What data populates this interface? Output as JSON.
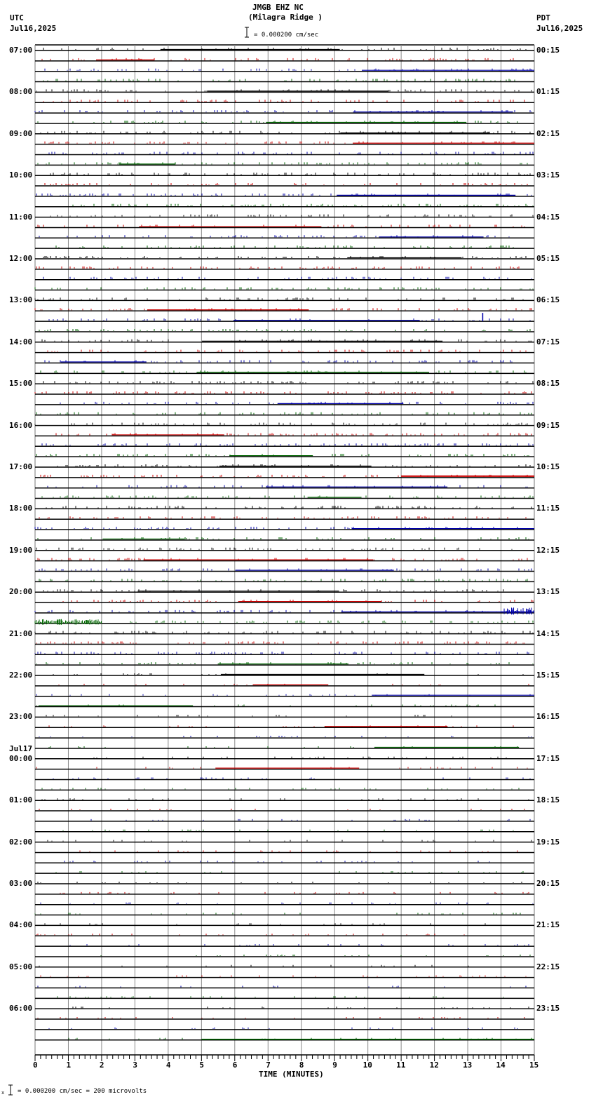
{
  "header": {
    "station": "JMGB EHZ NC",
    "location": "(Milagra Ridge )",
    "scale_label": "= 0.000200 cm/sec",
    "left_tz": "UTC",
    "left_date": "Jul16,2025",
    "right_tz": "PDT",
    "right_date": "Jul16,2025"
  },
  "footer": {
    "scale_note": "= 0.000200 cm/sec =     200 microvolts",
    "prefix": "x"
  },
  "chart_data": {
    "type": "line",
    "title": "JMGB EHZ NC (Milagra Ridge ) helicorder",
    "xlabel": "TIME (MINUTES)",
    "ylabel": "",
    "x_ticks": [
      0,
      1,
      2,
      3,
      4,
      5,
      6,
      7,
      8,
      9,
      10,
      11,
      12,
      13,
      14,
      15
    ],
    "xlim": [
      0,
      15
    ],
    "rows_per_hour": 4,
    "row_minutes": 15,
    "total_rows": 96,
    "trace_colors": [
      "#000000",
      "#cc0000",
      "#0000aa",
      "#006600"
    ],
    "grid": true,
    "left_labels": [
      "07:00",
      "08:00",
      "09:00",
      "10:00",
      "11:00",
      "12:00",
      "13:00",
      "14:00",
      "15:00",
      "16:00",
      "17:00",
      "18:00",
      "19:00",
      "20:00",
      "21:00",
      "22:00",
      "23:00",
      "00:00",
      "01:00",
      "02:00",
      "03:00",
      "04:00",
      "05:00",
      "06:00"
    ],
    "date_change_label": "Jul17",
    "right_labels": [
      "00:15",
      "01:15",
      "02:15",
      "03:15",
      "04:15",
      "05:15",
      "06:15",
      "07:15",
      "08:15",
      "09:15",
      "10:15",
      "11:15",
      "12:15",
      "13:15",
      "14:15",
      "15:15",
      "16:15",
      "17:15",
      "18:15",
      "19:15",
      "20:15",
      "21:15",
      "22:15",
      "23:15"
    ],
    "scale": "0.000200 cm/sec = 200 microvolts",
    "notable_events": [
      {
        "row": "20:30 UTC",
        "minute_range": [
          14.0,
          15.0
        ],
        "description": "burst of noise on blue trace"
      },
      {
        "row": "20:45 UTC",
        "minute_range": [
          0.0,
          2.0
        ],
        "description": "elevated noise on green trace"
      },
      {
        "row": "13:30 UTC",
        "minute": 13.4,
        "description": "spike on blue trace"
      },
      {
        "row": "17:15 UTC",
        "minute_range": [
          11.0,
          15.0
        ],
        "description": "red trace offset"
      }
    ]
  }
}
